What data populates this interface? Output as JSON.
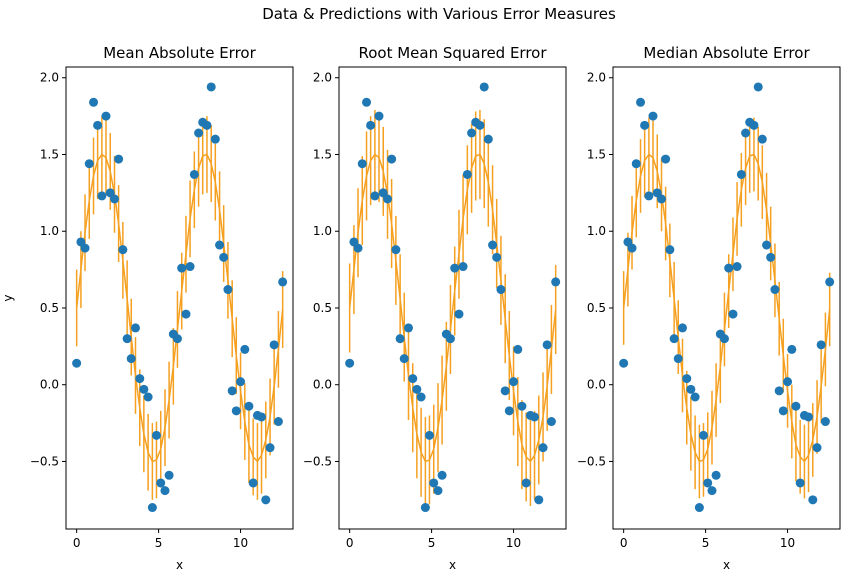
{
  "figure": {
    "suptitle": "Data & Predictions with Various Error Measures"
  },
  "colors": {
    "points": "#1f77b4",
    "prediction": "#f5a020",
    "axes": "#000000"
  },
  "chart_data": [
    {
      "type": "scatter",
      "title": "Mean Absolute Error",
      "xlabel": "x",
      "ylabel": "y",
      "xlim": [
        -0.65,
        13.2
      ],
      "ylim": [
        -0.94,
        2.07
      ],
      "xticks": [
        0,
        5,
        10
      ],
      "yticks": [
        -0.5,
        0.0,
        0.5,
        1.0,
        1.5,
        2.0
      ],
      "xtick_labels": [
        "0",
        "5",
        "10"
      ],
      "ytick_labels": [
        "−0.5",
        "0.0",
        "0.5",
        "1.0",
        "1.5",
        "2.0"
      ],
      "series": [
        {
          "kind": "points",
          "x": [
            0.0,
            0.26,
            0.51,
            0.77,
            1.03,
            1.28,
            1.54,
            1.79,
            2.05,
            2.31,
            2.56,
            2.82,
            3.08,
            3.33,
            3.59,
            3.85,
            4.1,
            4.36,
            4.62,
            4.87,
            5.13,
            5.39,
            5.64,
            5.9,
            6.15,
            6.41,
            6.67,
            6.92,
            7.18,
            7.44,
            7.69,
            7.95,
            8.21,
            8.46,
            8.72,
            8.97,
            9.23,
            9.49,
            9.74,
            10.0,
            10.26,
            10.51,
            10.77,
            11.03,
            11.28,
            11.54,
            11.8,
            12.05,
            12.31,
            12.57
          ],
          "y": [
            0.14,
            0.93,
            0.89,
            1.44,
            1.84,
            1.69,
            1.23,
            1.75,
            1.25,
            1.21,
            1.47,
            0.88,
            0.3,
            0.17,
            0.37,
            0.04,
            -0.03,
            -0.08,
            -0.8,
            -0.33,
            -0.64,
            -0.69,
            -0.59,
            0.33,
            0.3,
            0.76,
            0.46,
            0.77,
            1.37,
            1.64,
            1.71,
            1.69,
            1.94,
            1.6,
            0.91,
            0.83,
            0.62,
            -0.04,
            -0.17,
            0.02,
            0.23,
            -0.14,
            -0.64,
            -0.2,
            -0.21,
            -0.75,
            -0.41,
            0.26,
            -0.24,
            0.67
          ]
        },
        {
          "kind": "prediction",
          "x": [
            0.0,
            0.26,
            0.51,
            0.77,
            1.03,
            1.28,
            1.54,
            1.79,
            2.05,
            2.31,
            2.56,
            2.82,
            3.08,
            3.33,
            3.59,
            3.85,
            4.1,
            4.36,
            4.62,
            4.87,
            5.13,
            5.39,
            5.64,
            5.9,
            6.15,
            6.41,
            6.67,
            6.92,
            7.18,
            7.44,
            7.69,
            7.95,
            8.21,
            8.46,
            8.72,
            8.97,
            9.23,
            9.49,
            9.74,
            10.0,
            10.26,
            10.51,
            10.77,
            11.03,
            11.28,
            11.54,
            11.8,
            12.05,
            12.31,
            12.57
          ],
          "y": [
            0.5,
            0.75,
            0.99,
            1.2,
            1.36,
            1.46,
            1.5,
            1.48,
            1.39,
            1.24,
            1.05,
            0.81,
            0.56,
            0.31,
            0.06,
            -0.15,
            -0.32,
            -0.44,
            -0.5,
            -0.49,
            -0.42,
            -0.28,
            -0.1,
            0.12,
            0.36,
            0.61,
            0.85,
            1.08,
            1.27,
            1.41,
            1.49,
            1.5,
            1.44,
            1.32,
            1.14,
            0.92,
            0.68,
            0.43,
            0.19,
            -0.04,
            -0.24,
            -0.39,
            -0.47,
            -0.5,
            -0.46,
            -0.36,
            -0.21,
            -0.01,
            0.23,
            0.49
          ],
          "error": 0.25
        }
      ]
    },
    {
      "type": "scatter",
      "title": "Root Mean Squared Error",
      "xlabel": "x",
      "ylabel": "",
      "xlim": [
        -0.65,
        13.2
      ],
      "ylim": [
        -0.94,
        2.07
      ],
      "xticks": [
        0,
        5,
        10
      ],
      "yticks": [
        -0.5,
        0.0,
        0.5,
        1.0,
        1.5,
        2.0
      ],
      "xtick_labels": [
        "0",
        "5",
        "10"
      ],
      "ytick_labels": [
        "−0.5",
        "0.0",
        "0.5",
        "1.0",
        "1.5",
        "2.0"
      ],
      "series": [
        {
          "kind": "points",
          "x": [
            0.0,
            0.26,
            0.51,
            0.77,
            1.03,
            1.28,
            1.54,
            1.79,
            2.05,
            2.31,
            2.56,
            2.82,
            3.08,
            3.33,
            3.59,
            3.85,
            4.1,
            4.36,
            4.62,
            4.87,
            5.13,
            5.39,
            5.64,
            5.9,
            6.15,
            6.41,
            6.67,
            6.92,
            7.18,
            7.44,
            7.69,
            7.95,
            8.21,
            8.46,
            8.72,
            8.97,
            9.23,
            9.49,
            9.74,
            10.0,
            10.26,
            10.51,
            10.77,
            11.03,
            11.28,
            11.54,
            11.8,
            12.05,
            12.31,
            12.57
          ],
          "y": [
            0.14,
            0.93,
            0.89,
            1.44,
            1.84,
            1.69,
            1.23,
            1.75,
            1.25,
            1.21,
            1.47,
            0.88,
            0.3,
            0.17,
            0.37,
            0.04,
            -0.03,
            -0.08,
            -0.8,
            -0.33,
            -0.64,
            -0.69,
            -0.59,
            0.33,
            0.3,
            0.76,
            0.46,
            0.77,
            1.37,
            1.64,
            1.71,
            1.69,
            1.94,
            1.6,
            0.91,
            0.83,
            0.62,
            -0.04,
            -0.17,
            0.02,
            0.23,
            -0.14,
            -0.64,
            -0.2,
            -0.21,
            -0.75,
            -0.41,
            0.26,
            -0.24,
            0.67
          ]
        },
        {
          "kind": "prediction",
          "x": [
            0.0,
            0.26,
            0.51,
            0.77,
            1.03,
            1.28,
            1.54,
            1.79,
            2.05,
            2.31,
            2.56,
            2.82,
            3.08,
            3.33,
            3.59,
            3.85,
            4.1,
            4.36,
            4.62,
            4.87,
            5.13,
            5.39,
            5.64,
            5.9,
            6.15,
            6.41,
            6.67,
            6.92,
            7.18,
            7.44,
            7.69,
            7.95,
            8.21,
            8.46,
            8.72,
            8.97,
            9.23,
            9.49,
            9.74,
            10.0,
            10.26,
            10.51,
            10.77,
            11.03,
            11.28,
            11.54,
            11.8,
            12.05,
            12.31,
            12.57
          ],
          "y": [
            0.5,
            0.75,
            0.99,
            1.2,
            1.36,
            1.46,
            1.5,
            1.48,
            1.39,
            1.24,
            1.05,
            0.81,
            0.56,
            0.31,
            0.06,
            -0.15,
            -0.32,
            -0.44,
            -0.5,
            -0.49,
            -0.42,
            -0.28,
            -0.1,
            0.12,
            0.36,
            0.61,
            0.85,
            1.08,
            1.27,
            1.41,
            1.49,
            1.5,
            1.44,
            1.32,
            1.14,
            0.92,
            0.68,
            0.43,
            0.19,
            -0.04,
            -0.24,
            -0.39,
            -0.47,
            -0.5,
            -0.46,
            -0.36,
            -0.21,
            -0.01,
            0.23,
            0.49
          ],
          "error": 0.29
        }
      ]
    },
    {
      "type": "scatter",
      "title": "Median Absolute Error",
      "xlabel": "x",
      "ylabel": "",
      "xlim": [
        -0.65,
        13.2
      ],
      "ylim": [
        -0.94,
        2.07
      ],
      "xticks": [
        0,
        5,
        10
      ],
      "yticks": [
        -0.5,
        0.0,
        0.5,
        1.0,
        1.5,
        2.0
      ],
      "xtick_labels": [
        "0",
        "5",
        "10"
      ],
      "ytick_labels": [
        "−0.5",
        "0.0",
        "0.5",
        "1.0",
        "1.5",
        "2.0"
      ],
      "series": [
        {
          "kind": "points",
          "x": [
            0.0,
            0.26,
            0.51,
            0.77,
            1.03,
            1.28,
            1.54,
            1.79,
            2.05,
            2.31,
            2.56,
            2.82,
            3.08,
            3.33,
            3.59,
            3.85,
            4.1,
            4.36,
            4.62,
            4.87,
            5.13,
            5.39,
            5.64,
            5.9,
            6.15,
            6.41,
            6.67,
            6.92,
            7.18,
            7.44,
            7.69,
            7.95,
            8.21,
            8.46,
            8.72,
            8.97,
            9.23,
            9.49,
            9.74,
            10.0,
            10.26,
            10.51,
            10.77,
            11.03,
            11.28,
            11.54,
            11.8,
            12.05,
            12.31,
            12.57
          ],
          "y": [
            0.14,
            0.93,
            0.89,
            1.44,
            1.84,
            1.69,
            1.23,
            1.75,
            1.25,
            1.21,
            1.47,
            0.88,
            0.3,
            0.17,
            0.37,
            0.04,
            -0.03,
            -0.08,
            -0.8,
            -0.33,
            -0.64,
            -0.69,
            -0.59,
            0.33,
            0.3,
            0.76,
            0.46,
            0.77,
            1.37,
            1.64,
            1.71,
            1.69,
            1.94,
            1.6,
            0.91,
            0.83,
            0.62,
            -0.04,
            -0.17,
            0.02,
            0.23,
            -0.14,
            -0.64,
            -0.2,
            -0.21,
            -0.75,
            -0.41,
            0.26,
            -0.24,
            0.67
          ]
        },
        {
          "kind": "prediction",
          "x": [
            0.0,
            0.26,
            0.51,
            0.77,
            1.03,
            1.28,
            1.54,
            1.79,
            2.05,
            2.31,
            2.56,
            2.82,
            3.08,
            3.33,
            3.59,
            3.85,
            4.1,
            4.36,
            4.62,
            4.87,
            5.13,
            5.39,
            5.64,
            5.9,
            6.15,
            6.41,
            6.67,
            6.92,
            7.18,
            7.44,
            7.69,
            7.95,
            8.21,
            8.46,
            8.72,
            8.97,
            9.23,
            9.49,
            9.74,
            10.0,
            10.26,
            10.51,
            10.77,
            11.03,
            11.28,
            11.54,
            11.8,
            12.05,
            12.31,
            12.57
          ],
          "y": [
            0.5,
            0.75,
            0.99,
            1.2,
            1.36,
            1.46,
            1.5,
            1.48,
            1.39,
            1.24,
            1.05,
            0.81,
            0.56,
            0.31,
            0.06,
            -0.15,
            -0.32,
            -0.44,
            -0.5,
            -0.49,
            -0.42,
            -0.28,
            -0.1,
            0.12,
            0.36,
            0.61,
            0.85,
            1.08,
            1.27,
            1.41,
            1.49,
            1.5,
            1.44,
            1.32,
            1.14,
            0.92,
            0.68,
            0.43,
            0.19,
            -0.04,
            -0.24,
            -0.39,
            -0.47,
            -0.5,
            -0.46,
            -0.36,
            -0.21,
            -0.01,
            0.23,
            0.49
          ],
          "error": 0.24
        }
      ]
    }
  ]
}
